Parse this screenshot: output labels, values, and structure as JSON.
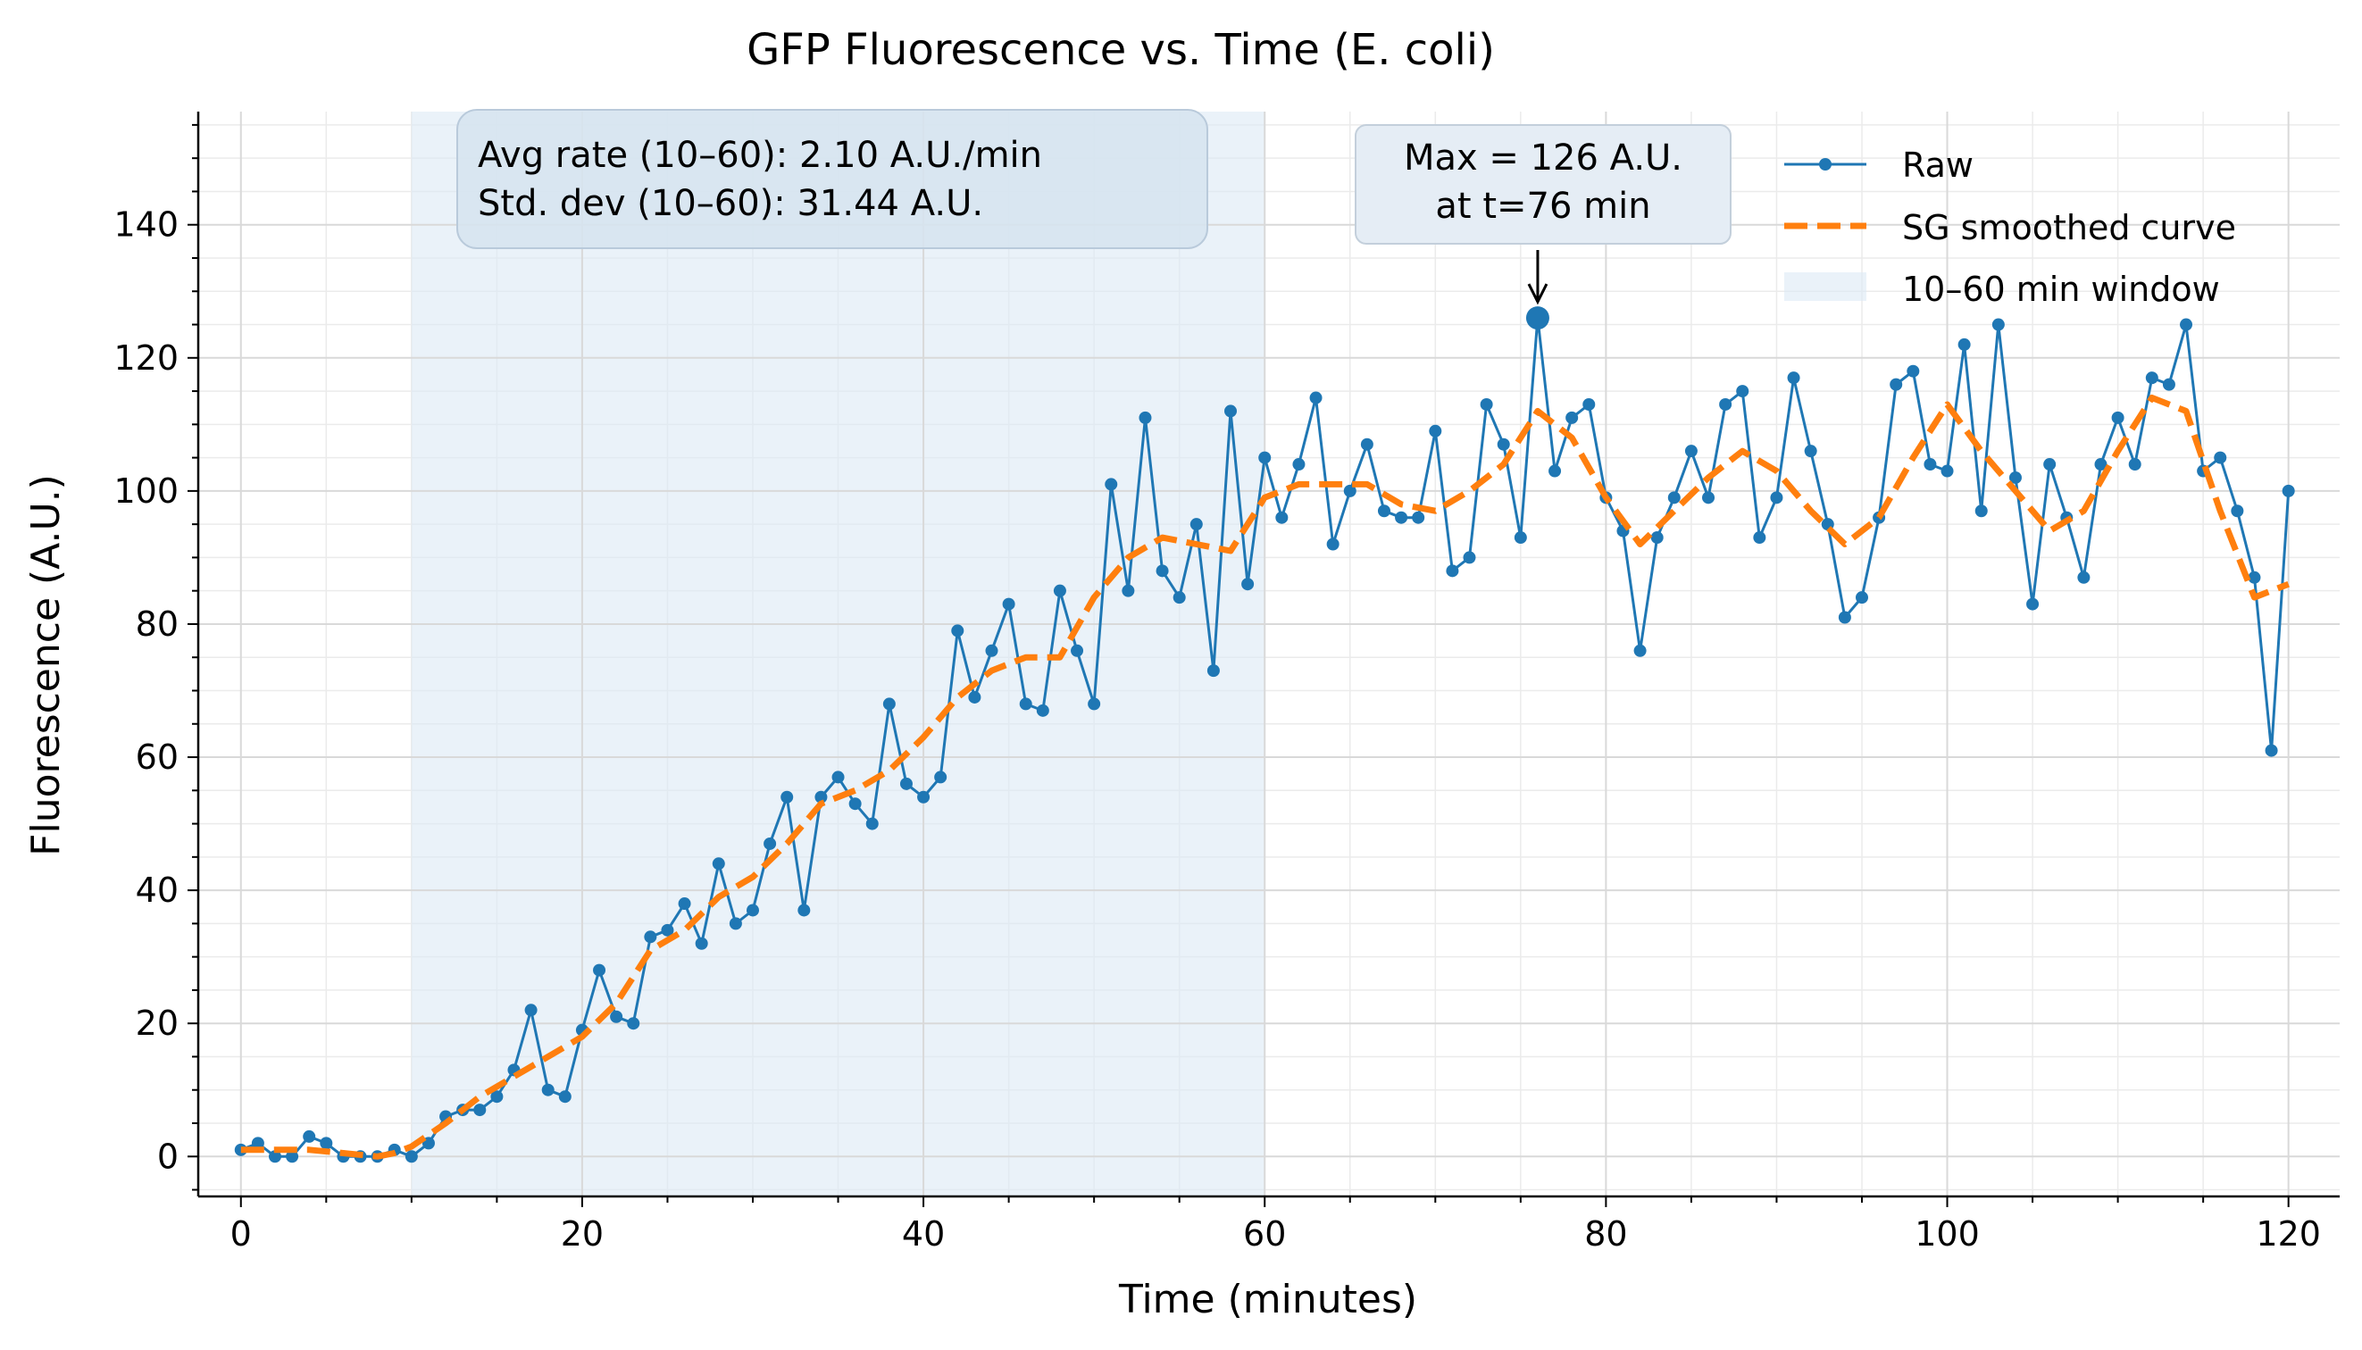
{
  "chart_data": {
    "type": "line",
    "title": "GFP Fluorescence vs. Time (E. coli)",
    "xlabel": "Time (minutes)",
    "ylabel": "Fluorescence (A.U.)",
    "xlim": [
      -2.5,
      123
    ],
    "ylim": [
      -6,
      157
    ],
    "xticks": [
      0,
      20,
      40,
      60,
      80,
      100,
      120
    ],
    "yticks": [
      0,
      20,
      40,
      60,
      80,
      100,
      120,
      140
    ],
    "grid": true,
    "legend_position": "top-right",
    "shaded_region": {
      "x0": 10,
      "x1": 60,
      "label": "10–60 min window",
      "color": "#dce9f5"
    },
    "series": [
      {
        "name": "Raw",
        "color": "#1f77b4",
        "style": "line-with-markers",
        "x": [
          0,
          1,
          2,
          3,
          4,
          5,
          6,
          7,
          8,
          9,
          10,
          11,
          12,
          13,
          14,
          15,
          16,
          17,
          18,
          19,
          20,
          21,
          22,
          23,
          24,
          25,
          26,
          27,
          28,
          29,
          30,
          31,
          32,
          33,
          34,
          35,
          36,
          37,
          38,
          39,
          40,
          41,
          42,
          43,
          44,
          45,
          46,
          47,
          48,
          49,
          50,
          51,
          52,
          53,
          54,
          55,
          56,
          57,
          58,
          59,
          60,
          61,
          62,
          63,
          64,
          65,
          66,
          67,
          68,
          69,
          70,
          71,
          72,
          73,
          74,
          75,
          76,
          77,
          78,
          79,
          80,
          81,
          82,
          83,
          84,
          85,
          86,
          87,
          88,
          89,
          90,
          91,
          92,
          93,
          94,
          95,
          96,
          97,
          98,
          99,
          100,
          101,
          102,
          103,
          104,
          105,
          106,
          107,
          108,
          109,
          110,
          111,
          112,
          113,
          114,
          115,
          116,
          117,
          118,
          119,
          120
        ],
        "y": [
          1,
          2,
          0,
          0,
          3,
          2,
          0,
          0,
          0,
          1,
          0,
          2,
          6,
          7,
          7,
          9,
          13,
          22,
          10,
          9,
          19,
          28,
          21,
          20,
          33,
          34,
          38,
          32,
          44,
          35,
          37,
          47,
          54,
          37,
          54,
          57,
          53,
          50,
          68,
          56,
          54,
          57,
          79,
          69,
          76,
          83,
          68,
          67,
          85,
          76,
          68,
          101,
          85,
          111,
          88,
          84,
          95,
          73,
          112,
          86,
          105,
          96,
          104,
          114,
          92,
          100,
          107,
          97,
          96,
          96,
          109,
          88,
          90,
          113,
          107,
          93,
          126,
          103,
          111,
          113,
          99,
          94,
          76,
          93,
          99,
          106,
          99,
          113,
          115,
          93,
          99,
          117,
          106,
          95,
          81,
          84,
          96,
          116,
          118,
          104,
          103,
          122,
          97,
          125,
          102,
          83,
          104,
          96,
          87,
          104,
          111,
          104,
          117,
          116,
          125,
          103,
          105,
          97,
          87,
          61,
          100
        ]
      },
      {
        "name": "SG smoothed curve",
        "color": "#ff7f0e",
        "style": "dashed",
        "x": [
          0,
          2,
          4,
          6,
          8,
          9,
          10,
          12,
          14,
          16,
          18,
          20,
          22,
          24,
          26,
          28,
          30,
          32,
          34,
          36,
          38,
          40,
          42,
          44,
          46,
          48,
          50,
          52,
          54,
          56,
          58,
          60,
          62,
          64,
          66,
          68,
          70,
          72,
          74,
          76,
          78,
          80,
          82,
          84,
          86,
          88,
          90,
          92,
          94,
          96,
          98,
          100,
          102,
          104,
          106,
          108,
          110,
          112,
          114,
          116,
          118,
          120
        ],
        "y": [
          1,
          1,
          1,
          0.5,
          0,
          0.5,
          1.5,
          5,
          9,
          12,
          15,
          18,
          23,
          31,
          34,
          39,
          42,
          47,
          53,
          55,
          58,
          63,
          69,
          73,
          75,
          75,
          84,
          90,
          93,
          92,
          91,
          99,
          101,
          101,
          101,
          98,
          97,
          100,
          104,
          112,
          108,
          99,
          92,
          97,
          102,
          106,
          103,
          97,
          92,
          96,
          105,
          113,
          106,
          100,
          94,
          97,
          106,
          114,
          112,
          97,
          84,
          86
        ]
      }
    ],
    "annotations": [
      {
        "lines": [
          "Avg rate (10–60): 2.10 A.U./min",
          "Std. dev (10–60): 31.44 A.U."
        ]
      },
      {
        "lines": [
          "Max = 126 A.U.",
          "at t=76 min"
        ],
        "x": 76,
        "y": 126
      }
    ]
  }
}
